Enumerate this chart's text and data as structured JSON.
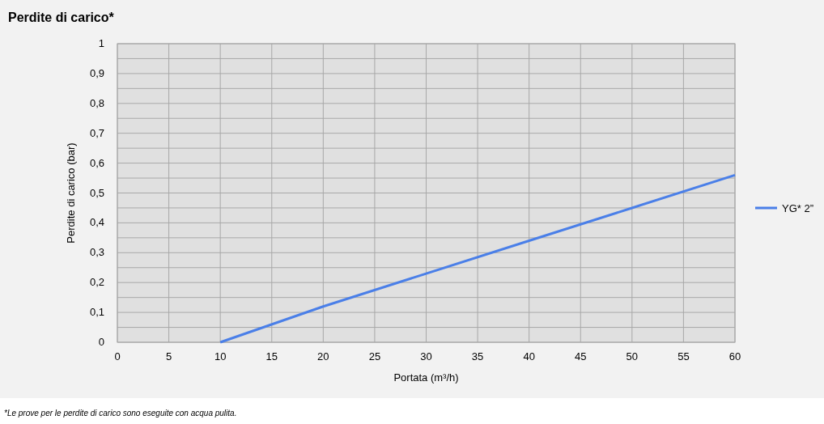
{
  "chart_data": {
    "type": "line",
    "title": "Perdite di carico*",
    "xlabel": "Portata (m³/h)",
    "ylabel": "Perdite di carico (bar)",
    "annotations": [
      "*Le prove per le perdite di carico sono eseguite con acqua pulita."
    ],
    "x": [
      10,
      20,
      30,
      40,
      50,
      60
    ],
    "series": [
      {
        "name": "YG* 2”",
        "color": "#4a7fe8",
        "values": [
          0,
          0.12,
          0.23,
          0.34,
          0.45,
          0.56
        ]
      }
    ],
    "xlim": [
      0,
      60
    ],
    "xticks": [
      0,
      5,
      10,
      15,
      20,
      25,
      30,
      35,
      40,
      45,
      50,
      55,
      60
    ],
    "ylim": [
      0,
      1
    ],
    "yticks": [
      {
        "value": 0,
        "label": "0"
      },
      {
        "value": 0.05,
        "label": null
      },
      {
        "value": 0.1,
        "label": "0,1"
      },
      {
        "value": 0.15,
        "label": null
      },
      {
        "value": 0.2,
        "label": "0,2"
      },
      {
        "value": 0.25,
        "label": null
      },
      {
        "value": 0.3,
        "label": "0,3"
      },
      {
        "value": 0.35,
        "label": null
      },
      {
        "value": 0.4,
        "label": "0,4"
      },
      {
        "value": 0.45,
        "label": null
      },
      {
        "value": 0.5,
        "label": "0,5"
      },
      {
        "value": 0.55,
        "label": null
      },
      {
        "value": 0.6,
        "label": "0,6"
      },
      {
        "value": 0.65,
        "label": null
      },
      {
        "value": 0.7,
        "label": "0,7"
      },
      {
        "value": 0.75,
        "label": null
      },
      {
        "value": 0.8,
        "label": "0,8"
      },
      {
        "value": 0.85,
        "label": null
      },
      {
        "value": 0.9,
        "label": "0,9"
      },
      {
        "value": 0.95,
        "label": null
      },
      {
        "value": 1,
        "label": "1"
      }
    ],
    "grid": true,
    "legend": "right",
    "marker": "none",
    "line_style": "solid"
  }
}
